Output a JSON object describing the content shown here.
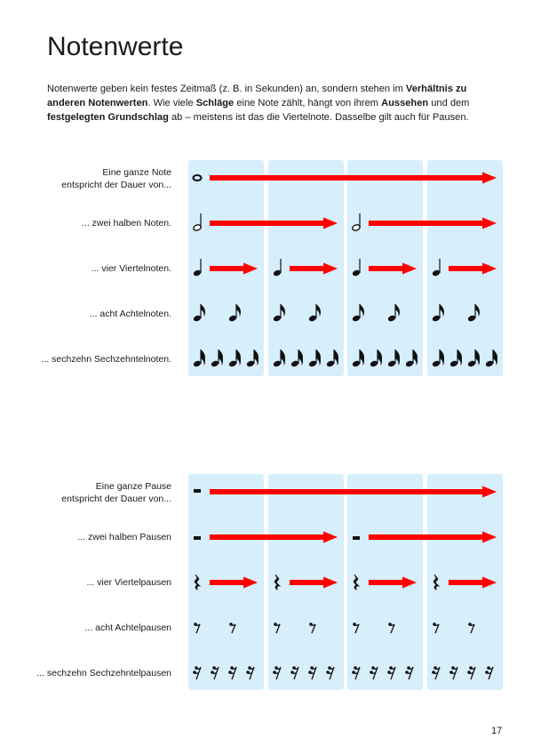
{
  "page_title": "Notenwerte",
  "intro": [
    {
      "text": "Notenwerte geben kein festes Zeitmaß (z. B. in Sekunden) an, sondern stehen im ",
      "bold": false
    },
    {
      "text": "Verhältnis zu anderen Noten­werten",
      "bold": true
    },
    {
      "text": ". Wie viele ",
      "bold": false
    },
    {
      "text": "Schläge",
      "bold": true
    },
    {
      "text": " eine Note zählt, hängt von ihrem ",
      "bold": false
    },
    {
      "text": "Aussehen",
      "bold": true
    },
    {
      "text": " und dem ",
      "bold": false
    },
    {
      "text": "festgelegten Grundschlag",
      "bold": true
    },
    {
      "text": " ab – meistens ist das die Viertelnote. Dasselbe gilt auch für Pausen.",
      "bold": false
    }
  ],
  "colors": {
    "column_bg": "#d7eefb",
    "arrow": "#ff0000",
    "glyph": "#111111"
  },
  "blocks": [
    {
      "name": "notes",
      "rows": [
        {
          "label": "Eine ganze Note\nentspricht der Dauer von...",
          "glyph": "whole-note",
          "per_beat_count": 0.25
        },
        {
          "label": "... zwei halben Noten.",
          "glyph": "half-note",
          "per_beat_count": 0.5
        },
        {
          "label": "... vier Viertelnoten.",
          "glyph": "quarter-note",
          "per_beat_count": 1
        },
        {
          "label": "... acht Achtelnoten.",
          "glyph": "eighth-note",
          "per_beat_count": 2
        },
        {
          "label": "... sechzehn Sechzehntelnoten.",
          "glyph": "sixteenth-note",
          "per_beat_count": 4
        }
      ]
    },
    {
      "name": "rests",
      "rows": [
        {
          "label": "Eine ganze Pause\nentspricht der Dauer von...",
          "glyph": "whole-rest",
          "per_beat_count": 0.25
        },
        {
          "label": "... zwei halben Pausen",
          "glyph": "half-rest",
          "per_beat_count": 0.5
        },
        {
          "label": "... vier Viertelpausen",
          "glyph": "quarter-rest",
          "per_beat_count": 1
        },
        {
          "label": "... acht Achtelpausen",
          "glyph": "eighth-rest",
          "per_beat_count": 2
        },
        {
          "label": "... sechzehn Sechzehntelpausen",
          "glyph": "sixteenth-rest",
          "per_beat_count": 4
        }
      ]
    }
  ],
  "page_number": "17"
}
